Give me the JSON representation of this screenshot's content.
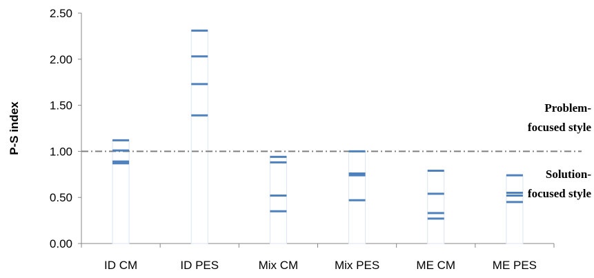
{
  "chart_data": {
    "type": "scatter",
    "marker": "dash",
    "ylabel": "P-S index",
    "ylim": [
      0,
      2.5
    ],
    "yticks": [
      "0.00",
      "0.50",
      "1.00",
      "1.50",
      "2.00",
      "2.50"
    ],
    "categories": [
      "ID CM",
      "ID PES",
      "Mix CM",
      "Mix PES",
      "ME CM",
      "ME PES"
    ],
    "groups": [
      {
        "category": "ID CM",
        "values": [
          1.12,
          1.01,
          0.89,
          0.87
        ]
      },
      {
        "category": "ID PES",
        "values": [
          2.31,
          2.03,
          1.73,
          1.39
        ]
      },
      {
        "category": "Mix CM",
        "values": [
          0.94,
          0.88,
          0.52,
          0.35
        ]
      },
      {
        "category": "Mix PES",
        "values": [
          1.0,
          0.76,
          0.74,
          0.47
        ]
      },
      {
        "category": "ME CM",
        "values": [
          0.79,
          0.54,
          0.33,
          0.27
        ]
      },
      {
        "category": "ME PES",
        "values": [
          0.74,
          0.55,
          0.52,
          0.45
        ]
      }
    ],
    "reference_line": {
      "y": 1.0,
      "style": "dash-dot",
      "color": "#7f7f7f"
    },
    "annotations": [
      {
        "lines": [
          "Problem-",
          "focused style"
        ],
        "position": "above reference line, right"
      },
      {
        "lines": [
          "Solution-",
          "focused style"
        ],
        "position": "below reference line, right"
      }
    ],
    "colors": {
      "marker": "#4f81bd",
      "range_box": "#dce6f1",
      "axis": "#868686"
    },
    "grid": false,
    "legend": "none"
  }
}
